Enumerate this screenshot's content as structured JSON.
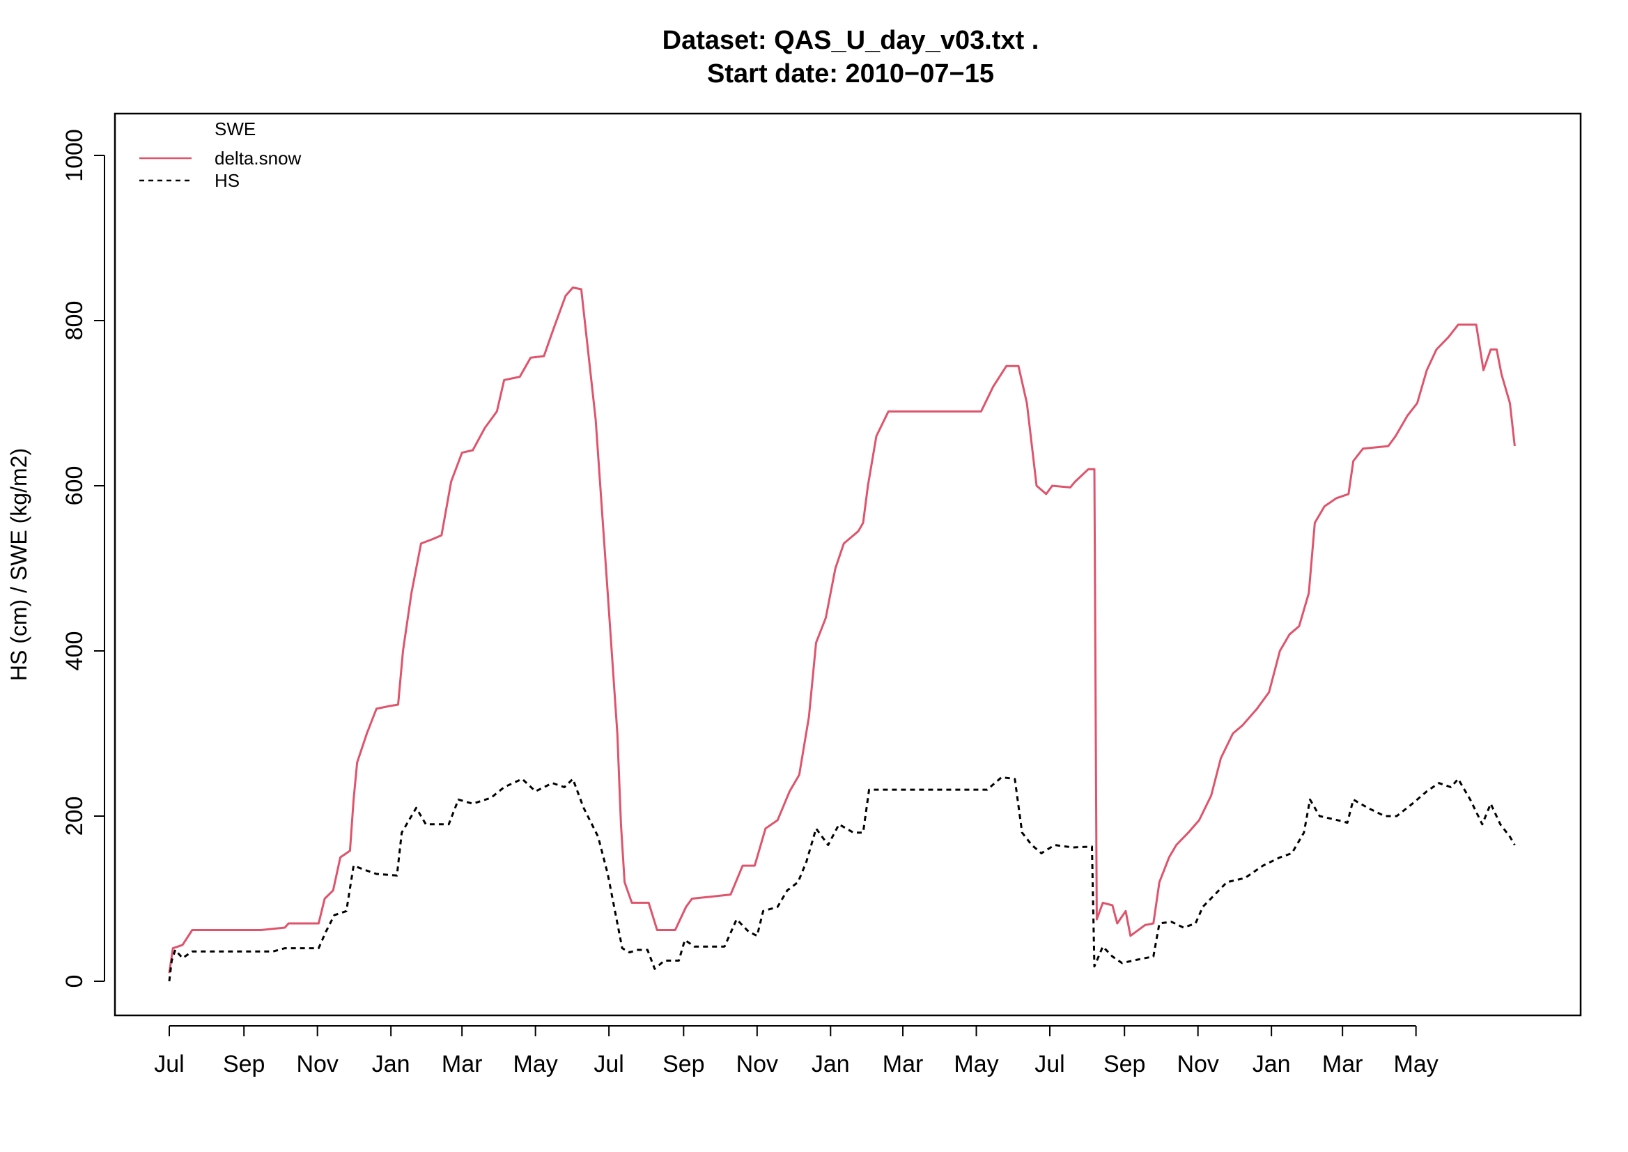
{
  "chart_data": {
    "type": "line",
    "title": "Dataset:  QAS_U_day_v03.txt .",
    "subtitle": "Start date:  2010−07−15",
    "xlabel": "",
    "ylabel": "HS (cm) / SWE (kg/m2)",
    "xlim": [
      "2010-07-01",
      "2013-07-31"
    ],
    "ylim": [
      -40,
      1050
    ],
    "yticks": [
      0,
      200,
      400,
      600,
      800,
      1000
    ],
    "xticks": [
      {
        "date": "2010-07-01",
        "label": "Jul"
      },
      {
        "date": "2010-09-01",
        "label": "Sep"
      },
      {
        "date": "2010-11-01",
        "label": "Nov"
      },
      {
        "date": "2011-01-01",
        "label": "Jan"
      },
      {
        "date": "2011-03-01",
        "label": "Mar"
      },
      {
        "date": "2011-05-01",
        "label": "May"
      },
      {
        "date": "2011-07-01",
        "label": "Jul"
      },
      {
        "date": "2011-09-01",
        "label": "Sep"
      },
      {
        "date": "2011-11-01",
        "label": "Nov"
      },
      {
        "date": "2012-01-01",
        "label": "Jan"
      },
      {
        "date": "2012-03-01",
        "label": "Mar"
      },
      {
        "date": "2012-05-01",
        "label": "May"
      },
      {
        "date": "2012-07-01",
        "label": "Jul"
      },
      {
        "date": "2012-09-01",
        "label": "Sep"
      },
      {
        "date": "2012-11-01",
        "label": "Nov"
      },
      {
        "date": "2013-01-01",
        "label": "Jan"
      },
      {
        "date": "2013-03-01",
        "label": "Mar"
      },
      {
        "date": "2013-05-01",
        "label": "May"
      }
    ],
    "grid": false,
    "legend": {
      "placement": "top-left",
      "header": "SWE",
      "entries": [
        {
          "name": "delta.snow",
          "style": "solid",
          "color": "#DF536B"
        },
        {
          "name": "HS",
          "style": "dashed",
          "color": "#000000"
        }
      ]
    },
    "series": [
      {
        "name": "delta.snow",
        "color": "#DF536B",
        "style": "solid",
        "points": [
          [
            "2010-07-01",
            10
          ],
          [
            "2010-07-04",
            40
          ],
          [
            "2010-07-12",
            44
          ],
          [
            "2010-07-20",
            62
          ],
          [
            "2010-09-15",
            62
          ],
          [
            "2010-10-05",
            65
          ],
          [
            "2010-10-08",
            70
          ],
          [
            "2010-11-02",
            70
          ],
          [
            "2010-11-07",
            100
          ],
          [
            "2010-11-14",
            110
          ],
          [
            "2010-11-20",
            150
          ],
          [
            "2010-11-28",
            158
          ],
          [
            "2010-12-01",
            220
          ],
          [
            "2010-12-04",
            265
          ],
          [
            "2010-12-12",
            300
          ],
          [
            "2010-12-20",
            330
          ],
          [
            "2010-12-30",
            333
          ],
          [
            "2011-01-07",
            335
          ],
          [
            "2011-01-11",
            400
          ],
          [
            "2011-01-18",
            470
          ],
          [
            "2011-01-26",
            530
          ],
          [
            "2011-02-04",
            535
          ],
          [
            "2011-02-12",
            540
          ],
          [
            "2011-02-20",
            605
          ],
          [
            "2011-03-01",
            640
          ],
          [
            "2011-03-10",
            643
          ],
          [
            "2011-03-20",
            670
          ],
          [
            "2011-03-30",
            690
          ],
          [
            "2011-04-05",
            728
          ],
          [
            "2011-04-18",
            732
          ],
          [
            "2011-04-27",
            755
          ],
          [
            "2011-05-08",
            757
          ],
          [
            "2011-05-16",
            790
          ],
          [
            "2011-05-26",
            830
          ],
          [
            "2011-06-01",
            840
          ],
          [
            "2011-06-08",
            838
          ],
          [
            "2011-06-20",
            680
          ],
          [
            "2011-06-30",
            470
          ],
          [
            "2011-07-08",
            300
          ],
          [
            "2011-07-11",
            190
          ],
          [
            "2011-07-14",
            120
          ],
          [
            "2011-07-20",
            95
          ],
          [
            "2011-08-03",
            95
          ],
          [
            "2011-08-10",
            62
          ],
          [
            "2011-08-25",
            62
          ],
          [
            "2011-09-03",
            90
          ],
          [
            "2011-09-08",
            100
          ],
          [
            "2011-10-10",
            105
          ],
          [
            "2011-10-20",
            140
          ],
          [
            "2011-10-30",
            140
          ],
          [
            "2011-11-08",
            185
          ],
          [
            "2011-11-18",
            195
          ],
          [
            "2011-11-28",
            230
          ],
          [
            "2011-12-06",
            250
          ],
          [
            "2011-12-14",
            320
          ],
          [
            "2011-12-20",
            410
          ],
          [
            "2011-12-28",
            440
          ],
          [
            "2012-01-05",
            500
          ],
          [
            "2012-01-12",
            530
          ],
          [
            "2012-01-24",
            545
          ],
          [
            "2012-01-28",
            555
          ],
          [
            "2012-02-01",
            600
          ],
          [
            "2012-02-08",
            660
          ],
          [
            "2012-02-18",
            690
          ],
          [
            "2012-05-05",
            690
          ],
          [
            "2012-05-15",
            720
          ],
          [
            "2012-05-26",
            745
          ],
          [
            "2012-06-05",
            745
          ],
          [
            "2012-06-12",
            700
          ],
          [
            "2012-06-20",
            600
          ],
          [
            "2012-06-28",
            590
          ],
          [
            "2012-07-03",
            600
          ],
          [
            "2012-07-18",
            598
          ],
          [
            "2012-07-22",
            605
          ],
          [
            "2012-08-02",
            620
          ],
          [
            "2012-08-07",
            620
          ],
          [
            "2012-08-09",
            75
          ],
          [
            "2012-08-14",
            95
          ],
          [
            "2012-08-22",
            92
          ],
          [
            "2012-08-26",
            70
          ],
          [
            "2012-09-02",
            85
          ],
          [
            "2012-09-06",
            55
          ],
          [
            "2012-09-18",
            68
          ],
          [
            "2012-09-25",
            70
          ],
          [
            "2012-09-30",
            120
          ],
          [
            "2012-10-08",
            150
          ],
          [
            "2012-10-14",
            165
          ],
          [
            "2012-10-24",
            180
          ],
          [
            "2012-11-02",
            195
          ],
          [
            "2012-11-12",
            225
          ],
          [
            "2012-11-20",
            270
          ],
          [
            "2012-11-30",
            300
          ],
          [
            "2012-12-08",
            310
          ],
          [
            "2012-12-20",
            330
          ],
          [
            "2012-12-30",
            350
          ],
          [
            "2013-01-08",
            400
          ],
          [
            "2013-01-16",
            420
          ],
          [
            "2013-01-24",
            430
          ],
          [
            "2013-02-01",
            470
          ],
          [
            "2013-02-06",
            555
          ],
          [
            "2013-02-14",
            575
          ],
          [
            "2013-02-24",
            585
          ],
          [
            "2013-03-06",
            590
          ],
          [
            "2013-03-10",
            630
          ],
          [
            "2013-03-18",
            645
          ],
          [
            "2013-04-08",
            648
          ],
          [
            "2013-04-14",
            660
          ],
          [
            "2013-04-24",
            685
          ],
          [
            "2013-05-02",
            700
          ],
          [
            "2013-05-10",
            740
          ],
          [
            "2013-05-18",
            765
          ],
          [
            "2013-05-28",
            780
          ],
          [
            "2013-06-05",
            795
          ],
          [
            "2013-06-20",
            795
          ],
          [
            "2013-06-26",
            740
          ],
          [
            "2013-07-02",
            765
          ],
          [
            "2013-07-07",
            765
          ],
          [
            "2013-07-11",
            735
          ],
          [
            "2013-07-18",
            700
          ],
          [
            "2013-07-22",
            648
          ]
        ]
      },
      {
        "name": "HS",
        "color": "#000000",
        "style": "dashed",
        "points": [
          [
            "2010-07-01",
            0
          ],
          [
            "2010-07-03",
            25
          ],
          [
            "2010-07-06",
            38
          ],
          [
            "2010-07-12",
            28
          ],
          [
            "2010-07-20",
            36
          ],
          [
            "2010-09-25",
            36
          ],
          [
            "2010-10-05",
            40
          ],
          [
            "2010-11-02",
            40
          ],
          [
            "2010-11-08",
            60
          ],
          [
            "2010-11-15",
            80
          ],
          [
            "2010-11-25",
            85
          ],
          [
            "2010-12-01",
            140
          ],
          [
            "2010-12-10",
            135
          ],
          [
            "2010-12-20",
            130
          ],
          [
            "2011-01-06",
            128
          ],
          [
            "2011-01-10",
            180
          ],
          [
            "2011-01-22",
            210
          ],
          [
            "2011-01-30",
            190
          ],
          [
            "2011-02-18",
            190
          ],
          [
            "2011-02-26",
            220
          ],
          [
            "2011-03-10",
            215
          ],
          [
            "2011-03-25",
            222
          ],
          [
            "2011-04-05",
            235
          ],
          [
            "2011-04-20",
            245
          ],
          [
            "2011-05-01",
            230
          ],
          [
            "2011-05-15",
            240
          ],
          [
            "2011-05-25",
            235
          ],
          [
            "2011-06-01",
            245
          ],
          [
            "2011-06-10",
            210
          ],
          [
            "2011-06-22",
            175
          ],
          [
            "2011-06-30",
            130
          ],
          [
            "2011-07-06",
            85
          ],
          [
            "2011-07-12",
            40
          ],
          [
            "2011-07-18",
            35
          ],
          [
            "2011-07-25",
            38
          ],
          [
            "2011-08-02",
            38
          ],
          [
            "2011-08-08",
            15
          ],
          [
            "2011-08-16",
            25
          ],
          [
            "2011-08-28",
            25
          ],
          [
            "2011-09-02",
            50
          ],
          [
            "2011-09-10",
            42
          ],
          [
            "2011-10-05",
            42
          ],
          [
            "2011-10-15",
            75
          ],
          [
            "2011-10-25",
            60
          ],
          [
            "2011-11-01",
            55
          ],
          [
            "2011-11-06",
            85
          ],
          [
            "2011-11-18",
            90
          ],
          [
            "2011-11-26",
            110
          ],
          [
            "2011-12-05",
            120
          ],
          [
            "2011-12-12",
            145
          ],
          [
            "2011-12-20",
            185
          ],
          [
            "2011-12-30",
            165
          ],
          [
            "2012-01-08",
            190
          ],
          [
            "2012-01-20",
            180
          ],
          [
            "2012-01-28",
            180
          ],
          [
            "2012-02-02",
            232
          ],
          [
            "2012-05-10",
            232
          ],
          [
            "2012-05-22",
            247
          ],
          [
            "2012-06-02",
            245
          ],
          [
            "2012-06-08",
            180
          ],
          [
            "2012-06-16",
            165
          ],
          [
            "2012-06-24",
            155
          ],
          [
            "2012-07-05",
            165
          ],
          [
            "2012-07-20",
            162
          ],
          [
            "2012-08-05",
            163
          ],
          [
            "2012-08-07",
            18
          ],
          [
            "2012-08-14",
            42
          ],
          [
            "2012-08-22",
            30
          ],
          [
            "2012-08-30",
            22
          ],
          [
            "2012-09-08",
            25
          ],
          [
            "2012-09-18",
            28
          ],
          [
            "2012-09-25",
            30
          ],
          [
            "2012-09-30",
            70
          ],
          [
            "2012-10-10",
            72
          ],
          [
            "2012-10-20",
            65
          ],
          [
            "2012-10-30",
            70
          ],
          [
            "2012-11-05",
            90
          ],
          [
            "2012-11-15",
            105
          ],
          [
            "2012-11-25",
            120
          ],
          [
            "2012-12-10",
            125
          ],
          [
            "2012-12-25",
            140
          ],
          [
            "2013-01-08",
            150
          ],
          [
            "2013-01-18",
            155
          ],
          [
            "2013-01-28",
            180
          ],
          [
            "2013-02-02",
            220
          ],
          [
            "2013-02-10",
            200
          ],
          [
            "2013-02-25",
            195
          ],
          [
            "2013-03-05",
            192
          ],
          [
            "2013-03-10",
            220
          ],
          [
            "2013-03-22",
            210
          ],
          [
            "2013-04-05",
            200
          ],
          [
            "2013-04-15",
            200
          ],
          [
            "2013-04-28",
            215
          ],
          [
            "2013-05-10",
            230
          ],
          [
            "2013-05-20",
            240
          ],
          [
            "2013-05-30",
            235
          ],
          [
            "2013-06-05",
            245
          ],
          [
            "2013-06-15",
            220
          ],
          [
            "2013-06-25",
            190
          ],
          [
            "2013-07-02",
            215
          ],
          [
            "2013-07-10",
            190
          ],
          [
            "2013-07-18",
            175
          ],
          [
            "2013-07-22",
            165
          ]
        ]
      }
    ]
  }
}
